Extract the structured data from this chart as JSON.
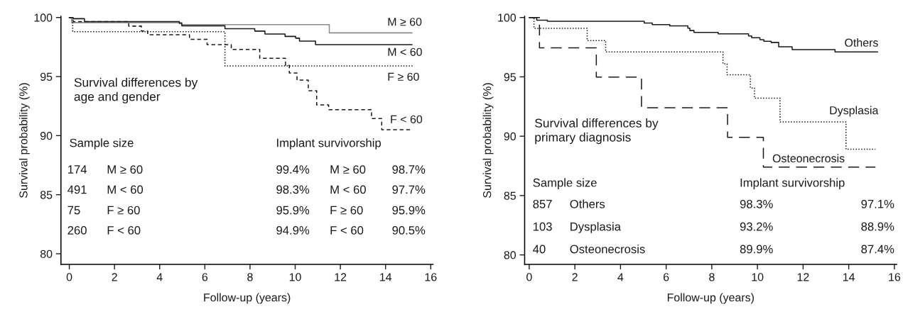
{
  "chart_data": [
    {
      "type": "step",
      "title": "Survival differences by\nage and gender",
      "xlabel": "Follow-up (years)",
      "ylabel": "Survival probability (%)",
      "xlim": [
        -0.37,
        16.1
      ],
      "ylim": [
        79.1,
        100.1
      ],
      "xticks": [
        0,
        2,
        4,
        6,
        8,
        10,
        12,
        14,
        16
      ],
      "yticks": [
        80,
        85,
        90,
        95,
        100
      ],
      "grid": false,
      "legend": false,
      "series": [
        {
          "name": "M ≥ 60",
          "color": "#8c8c8c",
          "line_style": "solid",
          "x": [
            0,
            0.1,
            4.98,
            11.51,
            15.17
          ],
          "values": [
            100,
            99.57,
            99.4,
            98.7,
            98.7
          ]
        },
        {
          "name": "M < 60",
          "color": "#1a1a1a",
          "line_style": "solid",
          "x": [
            0,
            0.17,
            0.67,
            4.87,
            4.98,
            6.89,
            8.21,
            8.66,
            9.55,
            10.02,
            10.19,
            10.9,
            15.17
          ],
          "values": [
            100,
            99.9,
            99.65,
            99.5,
            99.3,
            99.05,
            98.85,
            98.6,
            98.4,
            98.25,
            98.0,
            97.7,
            97.7
          ]
        },
        {
          "name": "F ≥ 60",
          "color": "#1a1a1a",
          "line_style": "dotted",
          "x": [
            0,
            0.15,
            6.89,
            15.23
          ],
          "values": [
            100,
            98.8,
            95.9,
            95.9
          ]
        },
        {
          "name": "F < 60",
          "color": "#1a1a1a",
          "line_style": "dashed",
          "x": [
            0,
            0.17,
            2.63,
            3.19,
            3.47,
            5.32,
            6.1,
            7.17,
            8.43,
            9.57,
            9.74,
            10.08,
            10.58,
            10.95,
            11.48,
            13.38,
            13.83,
            15.17
          ],
          "values": [
            100,
            99.65,
            99.27,
            98.86,
            98.54,
            98.15,
            97.7,
            97.3,
            96.55,
            95.95,
            95.3,
            94.7,
            93.8,
            92.6,
            92.2,
            91.45,
            90.5,
            90.5
          ]
        }
      ],
      "annotations": [
        "Sample size",
        "Implant survivorship",
        "174",
        "M ≥ 60",
        "99.4%",
        "M ≥ 60",
        "98.7%",
        "491",
        "M < 60",
        "98.3%",
        "M < 60",
        "97.7%",
        "75",
        "F ≥ 60",
        "95.9%",
        "F ≥ 60",
        "95.9%",
        "260",
        "F < 60",
        "94.9%",
        "F < 60",
        "90.5%"
      ]
    },
    {
      "type": "step",
      "title": "Survival differences by\nprimary diagnosis",
      "xlabel": "Follow-up (years)",
      "ylabel": "Survival probability (%)",
      "xlim": [
        -0.2,
        16.1
      ],
      "ylim": [
        79.2,
        100.1
      ],
      "xticks": [
        0,
        2,
        4,
        6,
        8,
        10,
        12,
        14,
        16
      ],
      "yticks": [
        80,
        85,
        90,
        95,
        100
      ],
      "grid": false,
      "legend": false,
      "series": [
        {
          "name": "Others",
          "color": "#1a1a1a",
          "line_style": "solid",
          "x": [
            0,
            0.33,
            0.8,
            5.04,
            5.39,
            6.16,
            6.95,
            7.04,
            7.22,
            8.28,
            9.61,
            9.75,
            10.11,
            10.28,
            10.6,
            10.93,
            11.52,
            13.4,
            15.26
          ],
          "values": [
            100,
            99.77,
            99.68,
            99.54,
            99.4,
            99.3,
            99.1,
            98.9,
            98.75,
            98.63,
            98.45,
            98.3,
            98.13,
            98.0,
            97.9,
            97.53,
            97.3,
            97.1,
            97.1
          ]
        },
        {
          "name": "Dysplasia",
          "color": "#1a1a1a",
          "line_style": "dotted",
          "x": [
            0,
            0.21,
            2.54,
            3.35,
            8.49,
            8.67,
            9.69,
            9.87,
            10.99,
            13.88,
            15.17
          ],
          "values": [
            100,
            99.09,
            98.06,
            97.1,
            96.1,
            95.18,
            94.06,
            93.2,
            91.2,
            88.9,
            88.9
          ]
        },
        {
          "name": "Osteonecrosis",
          "color": "#1a1a1a",
          "line_style": "dashed",
          "x": [
            0,
            0.45,
            2.94,
            4.92,
            8.69,
            10.26,
            15.17
          ],
          "values": [
            100,
            97.44,
            94.98,
            92.4,
            89.9,
            87.4,
            87.4
          ]
        }
      ],
      "annotations": [
        "Sample size",
        "Implant survivorship",
        "857",
        "Others",
        "98.3%",
        "97.1%",
        "103",
        "Dysplasia",
        "93.2%",
        "88.9%",
        "40",
        "Osteonecrosis",
        "89.9%",
        "87.4%"
      ]
    }
  ]
}
